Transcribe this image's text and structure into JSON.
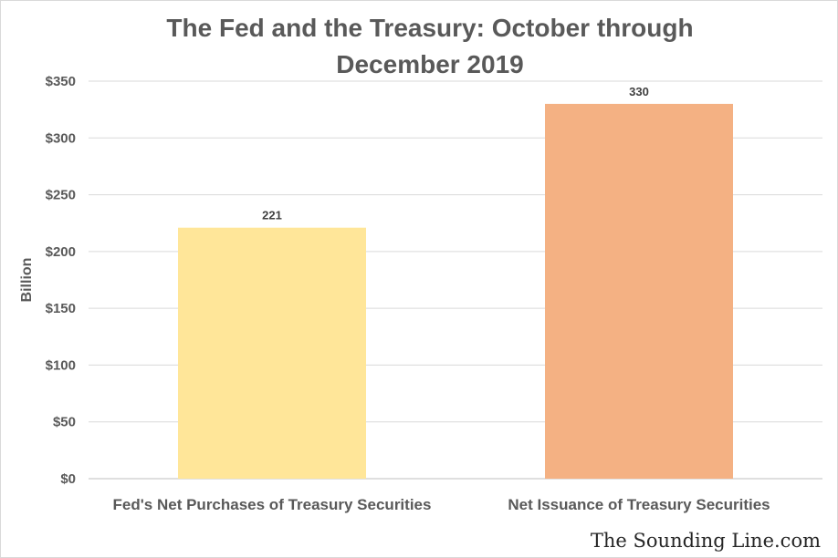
{
  "chart_data": {
    "type": "bar",
    "title": "The Fed and the Treasury: October through December 2019",
    "xlabel": "",
    "ylabel": "Billion",
    "categories": [
      "Fed's Net Purchases of Treasury Securities",
      "Net Issuance of Treasury Securities"
    ],
    "values": [
      221,
      330
    ],
    "data_labels": [
      "221",
      "330"
    ],
    "bar_colors": [
      "#ffe699",
      "#f4b183"
    ],
    "ylim": [
      0,
      350
    ],
    "yticks": [
      0,
      50,
      100,
      150,
      200,
      250,
      300,
      350
    ],
    "ytick_labels": [
      "$0",
      "$50",
      "$100",
      "$150",
      "$200",
      "$250",
      "$300",
      "$350"
    ],
    "grid": true,
    "legend": "none"
  },
  "watermark": "The Sounding Line.com"
}
